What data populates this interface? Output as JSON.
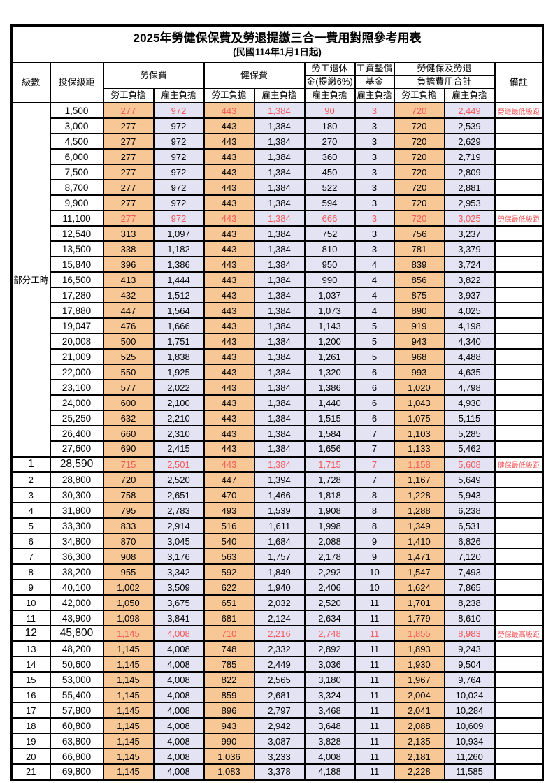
{
  "title": "2025年勞健保保費及勞退提繳三合一費用對照參考用表",
  "subtitle": "(民國114年1月1日起)",
  "colors": {
    "employee_bg": "#F7C795",
    "employer_bg": "#E4E3F3",
    "highlight_text": "#F4585A",
    "border": "#000000"
  },
  "headers": {
    "level": "級數",
    "bracket": "投保級距",
    "labor_insurance": "勞保費",
    "health_insurance": "健保費",
    "pension_line1": "勞工退休",
    "pension_line2": "金(提繳6%)",
    "wage_fund_line1": "工資墊償",
    "wage_fund_line2": "基金",
    "total_line1": "勞健保及勞退",
    "total_line2": "負擔費用合計",
    "remark": "備註",
    "employee": "勞工負擔",
    "employer": "雇主負擔"
  },
  "table": {
    "part_time_label": "部分工時",
    "part_time_rowspan": 23,
    "value_column_types": [
      "emp",
      "er",
      "emp",
      "er",
      "er",
      "er",
      "emp",
      "er"
    ],
    "rows": [
      {
        "level": "",
        "group": "部分工時",
        "group_rows": 23,
        "bracket": "1,500",
        "values": [
          "277",
          "972",
          "443",
          "1,384",
          "90",
          "3",
          "720",
          "2,449"
        ],
        "remark": "勞退最低級距",
        "highlight": true,
        "big": false,
        "section_start": false
      },
      {
        "level": "",
        "bracket": "3,000",
        "values": [
          "277",
          "972",
          "443",
          "1,384",
          "180",
          "3",
          "720",
          "2,539"
        ],
        "remark": "",
        "highlight": false,
        "big": false,
        "section_start": false
      },
      {
        "level": "",
        "bracket": "4,500",
        "values": [
          "277",
          "972",
          "443",
          "1,384",
          "270",
          "3",
          "720",
          "2,629"
        ],
        "remark": "",
        "highlight": false,
        "big": false,
        "section_start": false
      },
      {
        "level": "",
        "bracket": "6,000",
        "values": [
          "277",
          "972",
          "443",
          "1,384",
          "360",
          "3",
          "720",
          "2,719"
        ],
        "remark": "",
        "highlight": false,
        "big": false,
        "section_start": false
      },
      {
        "level": "",
        "bracket": "7,500",
        "values": [
          "277",
          "972",
          "443",
          "1,384",
          "450",
          "3",
          "720",
          "2,809"
        ],
        "remark": "",
        "highlight": false,
        "big": false,
        "section_start": false
      },
      {
        "level": "",
        "bracket": "8,700",
        "values": [
          "277",
          "972",
          "443",
          "1,384",
          "522",
          "3",
          "720",
          "2,881"
        ],
        "remark": "",
        "highlight": false,
        "big": false,
        "section_start": false
      },
      {
        "level": "",
        "bracket": "9,900",
        "values": [
          "277",
          "972",
          "443",
          "1,384",
          "594",
          "3",
          "720",
          "2,953"
        ],
        "remark": "",
        "highlight": false,
        "big": false,
        "section_start": false
      },
      {
        "level": "",
        "bracket": "11,100",
        "values": [
          "277",
          "972",
          "443",
          "1,384",
          "666",
          "3",
          "720",
          "3,025"
        ],
        "remark": "勞保最低級距",
        "highlight": true,
        "big": false,
        "section_start": false
      },
      {
        "level": "",
        "bracket": "12,540",
        "values": [
          "313",
          "1,097",
          "443",
          "1,384",
          "752",
          "3",
          "756",
          "3,237"
        ],
        "remark": "",
        "highlight": false,
        "big": false,
        "section_start": false
      },
      {
        "level": "",
        "bracket": "13,500",
        "values": [
          "338",
          "1,182",
          "443",
          "1,384",
          "810",
          "3",
          "781",
          "3,379"
        ],
        "remark": "",
        "highlight": false,
        "big": false,
        "section_start": false
      },
      {
        "level": "",
        "bracket": "15,840",
        "values": [
          "396",
          "1,386",
          "443",
          "1,384",
          "950",
          "4",
          "839",
          "3,724"
        ],
        "remark": "",
        "highlight": false,
        "big": false,
        "section_start": false
      },
      {
        "level": "",
        "bracket": "16,500",
        "values": [
          "413",
          "1,444",
          "443",
          "1,384",
          "990",
          "4",
          "856",
          "3,822"
        ],
        "remark": "",
        "highlight": false,
        "big": false,
        "section_start": false
      },
      {
        "level": "",
        "bracket": "17,280",
        "values": [
          "432",
          "1,512",
          "443",
          "1,384",
          "1,037",
          "4",
          "875",
          "3,937"
        ],
        "remark": "",
        "highlight": false,
        "big": false,
        "section_start": false
      },
      {
        "level": "",
        "bracket": "17,880",
        "values": [
          "447",
          "1,564",
          "443",
          "1,384",
          "1,073",
          "4",
          "890",
          "4,025"
        ],
        "remark": "",
        "highlight": false,
        "big": false,
        "section_start": false
      },
      {
        "level": "",
        "bracket": "19,047",
        "values": [
          "476",
          "1,666",
          "443",
          "1,384",
          "1,143",
          "5",
          "919",
          "4,198"
        ],
        "remark": "",
        "highlight": false,
        "big": false,
        "section_start": false
      },
      {
        "level": "",
        "bracket": "20,008",
        "values": [
          "500",
          "1,751",
          "443",
          "1,384",
          "1,200",
          "5",
          "943",
          "4,340"
        ],
        "remark": "",
        "highlight": false,
        "big": false,
        "section_start": false
      },
      {
        "level": "",
        "bracket": "21,009",
        "values": [
          "525",
          "1,838",
          "443",
          "1,384",
          "1,261",
          "5",
          "968",
          "4,488"
        ],
        "remark": "",
        "highlight": false,
        "big": false,
        "section_start": false
      },
      {
        "level": "",
        "bracket": "22,000",
        "values": [
          "550",
          "1,925",
          "443",
          "1,384",
          "1,320",
          "6",
          "993",
          "4,635"
        ],
        "remark": "",
        "highlight": false,
        "big": false,
        "section_start": false
      },
      {
        "level": "",
        "bracket": "23,100",
        "values": [
          "577",
          "2,022",
          "443",
          "1,384",
          "1,386",
          "6",
          "1,020",
          "4,798"
        ],
        "remark": "",
        "highlight": false,
        "big": false,
        "section_start": false
      },
      {
        "level": "",
        "bracket": "24,000",
        "values": [
          "600",
          "2,100",
          "443",
          "1,384",
          "1,440",
          "6",
          "1,043",
          "4,930"
        ],
        "remark": "",
        "highlight": false,
        "big": false,
        "section_start": false
      },
      {
        "level": "",
        "bracket": "25,250",
        "values": [
          "632",
          "2,210",
          "443",
          "1,384",
          "1,515",
          "6",
          "1,075",
          "5,115"
        ],
        "remark": "",
        "highlight": false,
        "big": false,
        "section_start": false
      },
      {
        "level": "",
        "bracket": "26,400",
        "values": [
          "660",
          "2,310",
          "443",
          "1,384",
          "1,584",
          "7",
          "1,103",
          "5,285"
        ],
        "remark": "",
        "highlight": false,
        "big": false,
        "section_start": false
      },
      {
        "level": "",
        "bracket": "27,600",
        "values": [
          "690",
          "2,415",
          "443",
          "1,384",
          "1,656",
          "7",
          "1,133",
          "5,462"
        ],
        "remark": "",
        "highlight": false,
        "big": false,
        "section_start": false
      },
      {
        "level": "1",
        "bracket": "28,590",
        "values": [
          "715",
          "2,501",
          "443",
          "1,384",
          "1,715",
          "7",
          "1,158",
          "5,608"
        ],
        "remark": "健保最低級距",
        "highlight": true,
        "big": true,
        "section_start": true
      },
      {
        "level": "2",
        "bracket": "28,800",
        "values": [
          "720",
          "2,520",
          "447",
          "1,394",
          "1,728",
          "7",
          "1,167",
          "5,649"
        ],
        "remark": "",
        "highlight": false,
        "big": false,
        "section_start": false
      },
      {
        "level": "3",
        "bracket": "30,300",
        "values": [
          "758",
          "2,651",
          "470",
          "1,466",
          "1,818",
          "8",
          "1,228",
          "5,943"
        ],
        "remark": "",
        "highlight": false,
        "big": false,
        "section_start": false
      },
      {
        "level": "4",
        "bracket": "31,800",
        "values": [
          "795",
          "2,783",
          "493",
          "1,539",
          "1,908",
          "8",
          "1,288",
          "6,238"
        ],
        "remark": "",
        "highlight": false,
        "big": false,
        "section_start": false
      },
      {
        "level": "5",
        "bracket": "33,300",
        "values": [
          "833",
          "2,914",
          "516",
          "1,611",
          "1,998",
          "8",
          "1,349",
          "6,531"
        ],
        "remark": "",
        "highlight": false,
        "big": false,
        "section_start": false
      },
      {
        "level": "6",
        "bracket": "34,800",
        "values": [
          "870",
          "3,045",
          "540",
          "1,684",
          "2,088",
          "9",
          "1,410",
          "6,826"
        ],
        "remark": "",
        "highlight": false,
        "big": false,
        "section_start": false
      },
      {
        "level": "7",
        "bracket": "36,300",
        "values": [
          "908",
          "3,176",
          "563",
          "1,757",
          "2,178",
          "9",
          "1,471",
          "7,120"
        ],
        "remark": "",
        "highlight": false,
        "big": false,
        "section_start": false
      },
      {
        "level": "8",
        "bracket": "38,200",
        "values": [
          "955",
          "3,342",
          "592",
          "1,849",
          "2,292",
          "10",
          "1,547",
          "7,493"
        ],
        "remark": "",
        "highlight": false,
        "big": false,
        "section_start": false
      },
      {
        "level": "9",
        "bracket": "40,100",
        "values": [
          "1,002",
          "3,509",
          "622",
          "1,940",
          "2,406",
          "10",
          "1,624",
          "7,865"
        ],
        "remark": "",
        "highlight": false,
        "big": false,
        "section_start": false
      },
      {
        "level": "10",
        "bracket": "42,000",
        "values": [
          "1,050",
          "3,675",
          "651",
          "2,032",
          "2,520",
          "11",
          "1,701",
          "8,238"
        ],
        "remark": "",
        "highlight": false,
        "big": false,
        "section_start": false
      },
      {
        "level": "11",
        "bracket": "43,900",
        "values": [
          "1,098",
          "3,841",
          "681",
          "2,124",
          "2,634",
          "11",
          "1,779",
          "8,610"
        ],
        "remark": "",
        "highlight": false,
        "big": false,
        "section_start": false
      },
      {
        "level": "12",
        "bracket": "45,800",
        "values": [
          "1,145",
          "4,008",
          "710",
          "2,216",
          "2,748",
          "11",
          "1,855",
          "8,983"
        ],
        "remark": "勞保最高級距",
        "highlight": true,
        "big": true,
        "section_start": false
      },
      {
        "level": "13",
        "bracket": "48,200",
        "values": [
          "1,145",
          "4,008",
          "748",
          "2,332",
          "2,892",
          "11",
          "1,893",
          "9,243"
        ],
        "remark": "",
        "highlight": false,
        "big": false,
        "section_start": false
      },
      {
        "level": "14",
        "bracket": "50,600",
        "values": [
          "1,145",
          "4,008",
          "785",
          "2,449",
          "3,036",
          "11",
          "1,930",
          "9,504"
        ],
        "remark": "",
        "highlight": false,
        "big": false,
        "section_start": false
      },
      {
        "level": "15",
        "bracket": "53,000",
        "values": [
          "1,145",
          "4,008",
          "822",
          "2,565",
          "3,180",
          "11",
          "1,967",
          "9,764"
        ],
        "remark": "",
        "highlight": false,
        "big": false,
        "section_start": false
      },
      {
        "level": "16",
        "bracket": "55,400",
        "values": [
          "1,145",
          "4,008",
          "859",
          "2,681",
          "3,324",
          "11",
          "2,004",
          "10,024"
        ],
        "remark": "",
        "highlight": false,
        "big": false,
        "section_start": false
      },
      {
        "level": "17",
        "bracket": "57,800",
        "values": [
          "1,145",
          "4,008",
          "896",
          "2,797",
          "3,468",
          "11",
          "2,041",
          "10,284"
        ],
        "remark": "",
        "highlight": false,
        "big": false,
        "section_start": false
      },
      {
        "level": "18",
        "bracket": "60,800",
        "values": [
          "1,145",
          "4,008",
          "943",
          "2,942",
          "3,648",
          "11",
          "2,088",
          "10,609"
        ],
        "remark": "",
        "highlight": false,
        "big": false,
        "section_start": false
      },
      {
        "level": "19",
        "bracket": "63,800",
        "values": [
          "1,145",
          "4,008",
          "990",
          "3,087",
          "3,828",
          "11",
          "2,135",
          "10,934"
        ],
        "remark": "",
        "highlight": false,
        "big": false,
        "section_start": false
      },
      {
        "level": "20",
        "bracket": "66,800",
        "values": [
          "1,145",
          "4,008",
          "1,036",
          "3,233",
          "4,008",
          "11",
          "2,181",
          "11,260"
        ],
        "remark": "",
        "highlight": false,
        "big": false,
        "section_start": false
      },
      {
        "level": "21",
        "bracket": "69,800",
        "values": [
          "1,145",
          "4,008",
          "1,083",
          "3,378",
          "4,188",
          "11",
          "2,228",
          "11,585"
        ],
        "remark": "",
        "highlight": false,
        "big": false,
        "section_start": false
      }
    ]
  }
}
